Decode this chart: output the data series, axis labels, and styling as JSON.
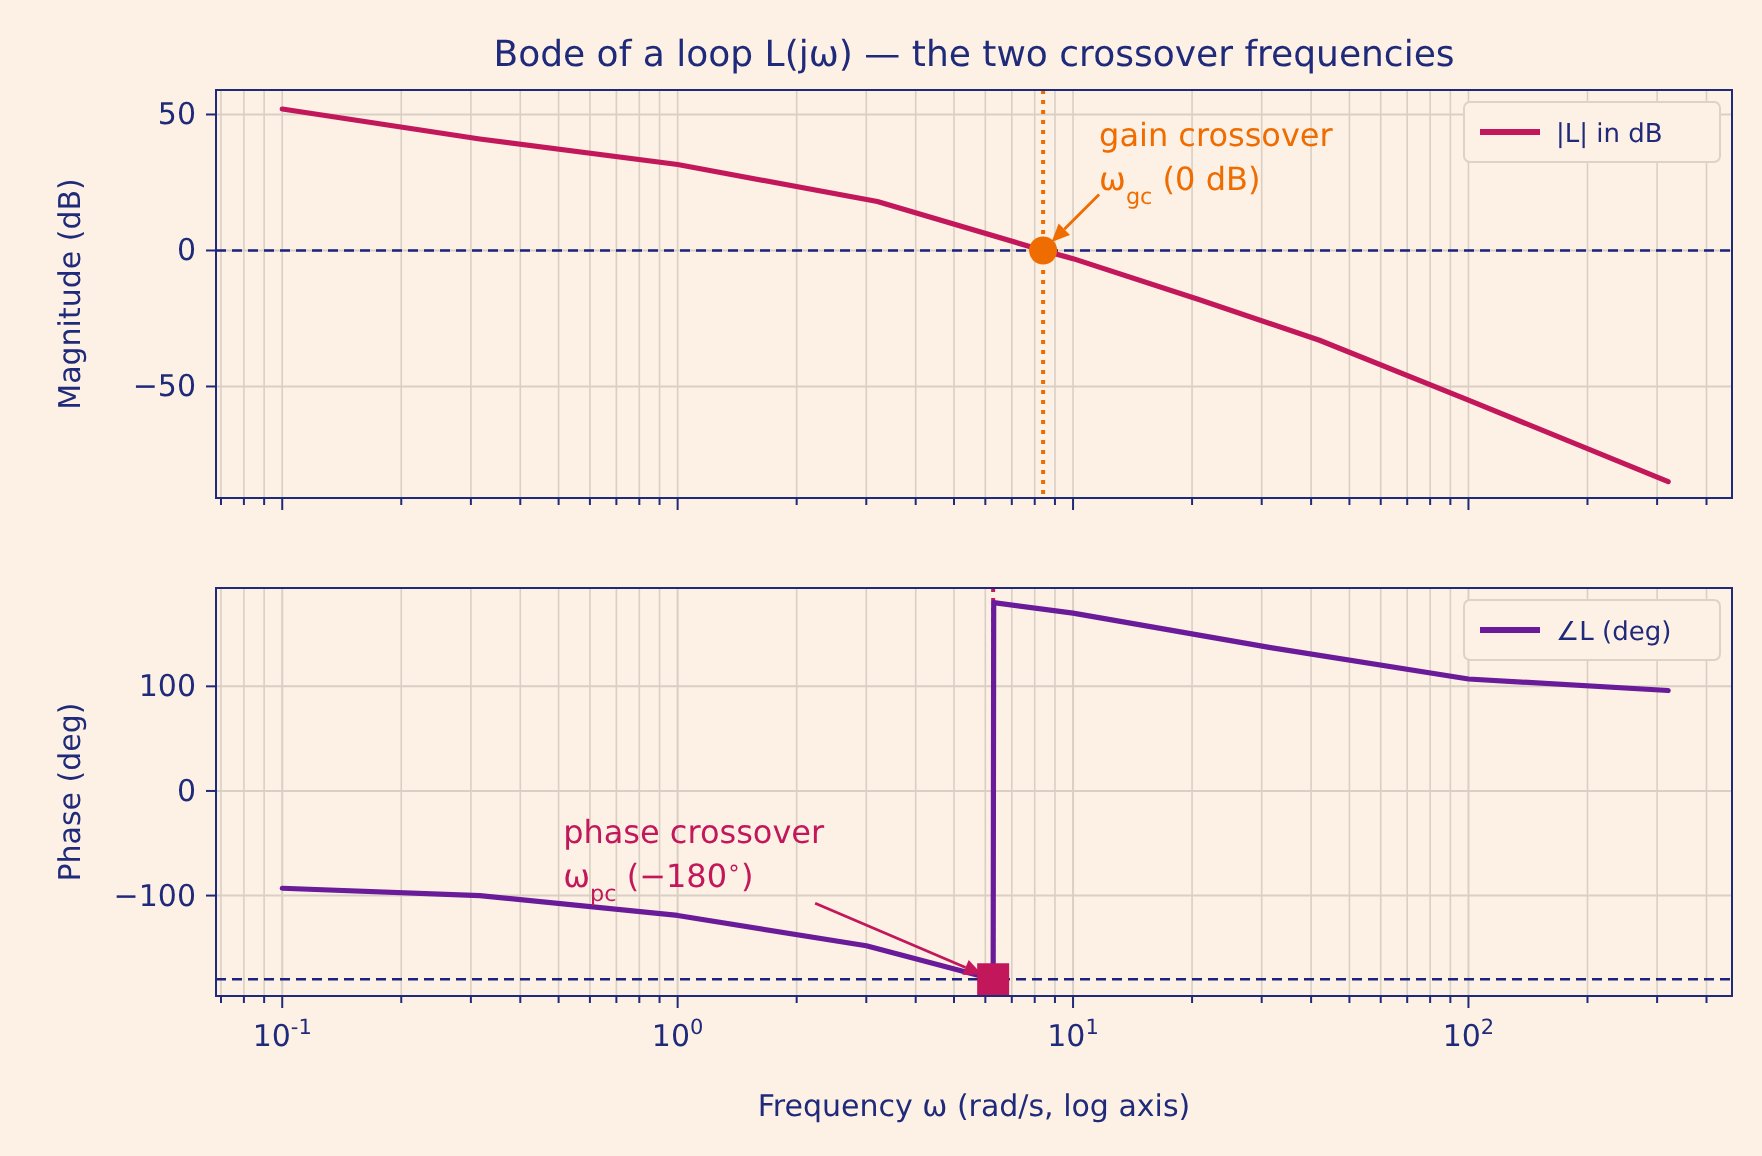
{
  "chart_data": [
    {
      "type": "line",
      "title": "Bode of a loop L(jω) — the two crossover frequencies",
      "ylabel": "Magnitude (dB)",
      "log": "x",
      "grid": true,
      "legend": "top right",
      "tick_labels": "y",
      "xlim": [
        0.068,
        464
      ],
      "ylim": [
        -91,
        59
      ],
      "yticks": [
        -50,
        0,
        50
      ],
      "xticks": [
        {
          "value": 0.07,
          "label": null
        },
        {
          "value": 0.08,
          "label": null
        },
        {
          "value": 0.09,
          "label": null
        },
        {
          "value": 0.1,
          "label": null
        },
        {
          "value": 0.2,
          "label": null
        },
        {
          "value": 0.3,
          "label": null
        },
        {
          "value": 0.4,
          "label": null
        },
        {
          "value": 0.5,
          "label": null
        },
        {
          "value": 0.6,
          "label": null
        },
        {
          "value": 0.7,
          "label": null
        },
        {
          "value": 0.8,
          "label": null
        },
        {
          "value": 0.9,
          "label": null
        },
        {
          "value": 1,
          "label": null
        },
        {
          "value": 2,
          "label": null
        },
        {
          "value": 3,
          "label": null
        },
        {
          "value": 4,
          "label": null
        },
        {
          "value": 5,
          "label": null
        },
        {
          "value": 6,
          "label": null
        },
        {
          "value": 7,
          "label": null
        },
        {
          "value": 8,
          "label": null
        },
        {
          "value": 9,
          "label": null
        },
        {
          "value": 10,
          "label": null
        },
        {
          "value": 20,
          "label": null
        },
        {
          "value": 30,
          "label": null
        },
        {
          "value": 40,
          "label": null
        },
        {
          "value": 50,
          "label": null
        },
        {
          "value": 60,
          "label": null
        },
        {
          "value": 70,
          "label": null
        },
        {
          "value": 80,
          "label": null
        },
        {
          "value": 90,
          "label": null
        },
        {
          "value": 100,
          "label": null
        },
        {
          "value": 200,
          "label": null
        },
        {
          "value": 300,
          "label": null
        },
        {
          "value": 400,
          "label": null
        }
      ],
      "series": [
        {
          "name": "|L| in dB",
          "color": "#c2185b",
          "x": [
            0.1,
            0.316,
            1,
            3.2,
            8.4,
            10,
            20.8,
            42,
            100,
            320
          ],
          "values": [
            52,
            41,
            31.6,
            18,
            0,
            -3,
            -18,
            -33,
            -55,
            -85
          ]
        },
        {
          "type": "scatter",
          "marker": "circle",
          "color": "#ef6c00",
          "x": [
            8.4
          ],
          "values": [
            0
          ]
        }
      ],
      "ref_lines": [
        {
          "axis": "y",
          "value": 0,
          "color": "#1a237e",
          "line_style": "dashed"
        },
        {
          "axis": "x",
          "value": 8.4,
          "color": "#ef6c00",
          "line_style": "dotted"
        }
      ],
      "annotations": [
        {
          "text": "gain crossover\nω$_{gc}$ (0 dB)",
          "x": 8.4,
          "y": 0
        }
      ]
    },
    {
      "type": "line",
      "ylabel": "Phase (deg)",
      "xlabel": "Frequency ω  (rad/s, log axis)",
      "log": "x",
      "grid": true,
      "legend": "top right",
      "xlim": [
        0.068,
        464
      ],
      "ylim": [
        -196,
        194
      ],
      "yticks": [
        -100,
        0,
        100
      ],
      "xticks": [
        {
          "value": 0.07,
          "label": null
        },
        {
          "value": 0.08,
          "label": null
        },
        {
          "value": 0.09,
          "label": null
        },
        {
          "value": 0.1,
          "label": "10$^{-1}$"
        },
        {
          "value": 0.2,
          "label": null
        },
        {
          "value": 0.3,
          "label": null
        },
        {
          "value": 0.4,
          "label": null
        },
        {
          "value": 0.5,
          "label": null
        },
        {
          "value": 0.6,
          "label": null
        },
        {
          "value": 0.7,
          "label": null
        },
        {
          "value": 0.8,
          "label": null
        },
        {
          "value": 0.9,
          "label": null
        },
        {
          "value": 1,
          "label": "10$^{0}$"
        },
        {
          "value": 2,
          "label": null
        },
        {
          "value": 3,
          "label": null
        },
        {
          "value": 4,
          "label": null
        },
        {
          "value": 5,
          "label": null
        },
        {
          "value": 6,
          "label": null
        },
        {
          "value": 7,
          "label": null
        },
        {
          "value": 8,
          "label": null
        },
        {
          "value": 9,
          "label": null
        },
        {
          "value": 10,
          "label": "10$^{1}$"
        },
        {
          "value": 20,
          "label": null
        },
        {
          "value": 30,
          "label": null
        },
        {
          "value": 40,
          "label": null
        },
        {
          "value": 50,
          "label": null
        },
        {
          "value": 60,
          "label": null
        },
        {
          "value": 70,
          "label": null
        },
        {
          "value": 80,
          "label": null
        },
        {
          "value": 90,
          "label": null
        },
        {
          "value": 100,
          "label": "10$^{2}$"
        },
        {
          "value": 200,
          "label": null
        },
        {
          "value": 300,
          "label": null
        },
        {
          "value": 400,
          "label": null
        }
      ],
      "series": [
        {
          "name": "∠L (deg)",
          "color": "#6a1b9a",
          "x": [
            0.1,
            0.316,
            1,
            3,
            6.28,
            6.3,
            10,
            31.6,
            100,
            320
          ],
          "values": [
            -93,
            -100,
            -119,
            -148,
            -180,
            180,
            170,
            137,
            107,
            96
          ]
        },
        {
          "type": "scatter",
          "marker": "square",
          "color": "#c2185b",
          "x": [
            6.28
          ],
          "values": [
            -180
          ]
        }
      ],
      "ref_lines": [
        {
          "axis": "y",
          "value": -180,
          "color": "#1a237e",
          "line_style": "dashed"
        },
        {
          "axis": "x",
          "value": 6.28,
          "color": "#c2185b",
          "line_style": "dotted"
        }
      ],
      "annotations": [
        "phase crossover\nω$_{pc}$ (−180$^{∘}$)"
      ]
    }
  ]
}
